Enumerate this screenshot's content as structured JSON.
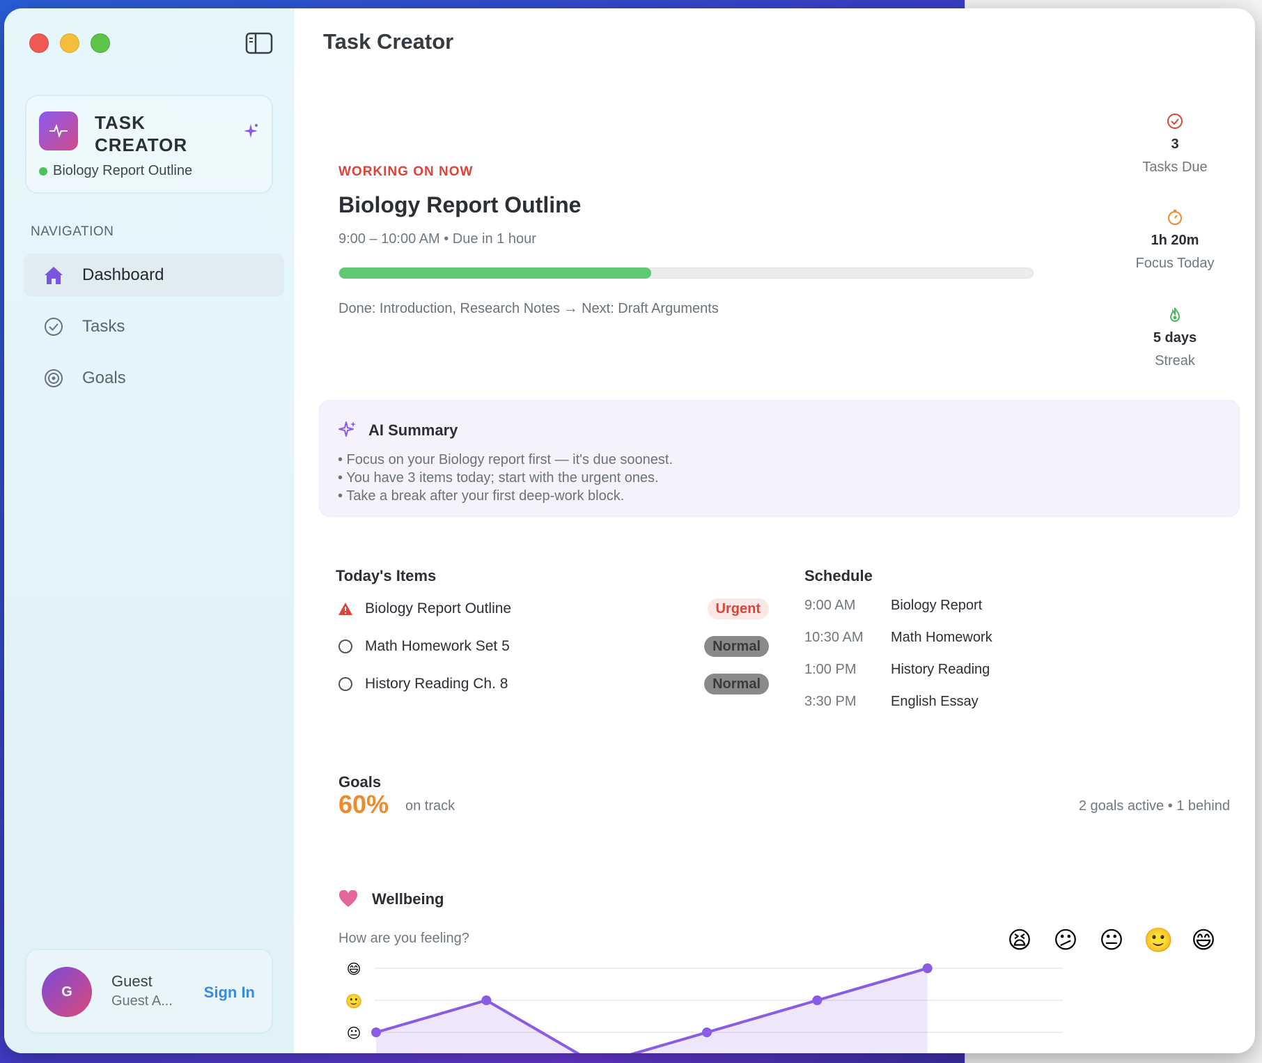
{
  "window": {
    "title": "Task Creator"
  },
  "sidebar": {
    "brand": {
      "title": "TASK CREATOR",
      "status": "Biology Report Outline"
    },
    "nav_label": "NAVIGATION",
    "items": [
      {
        "label": "Dashboard",
        "icon": "house-icon",
        "active": true
      },
      {
        "label": "Tasks",
        "icon": "check-circle-icon",
        "active": false
      },
      {
        "label": "Goals",
        "icon": "target-icon",
        "active": false
      }
    ],
    "user": {
      "initial": "G",
      "name": "Guest",
      "subtitle": "Guest A...",
      "sign_in": "Sign In"
    }
  },
  "current": {
    "label": "WORKING ON NOW",
    "title": "Biology Report Outline",
    "time": "9:00 – 10:00 AM • Due in 1 hour",
    "progress": 0.45,
    "steps": "Done: Introduction, Research Notes → Next: Draft Arguments"
  },
  "stats": [
    {
      "value": "3",
      "label": "Tasks Due",
      "icon": "check-circle-icon",
      "color": "#dd4437"
    },
    {
      "value": "1h 20m",
      "label": "Focus Today",
      "icon": "timer-icon",
      "color": "#ef8a2b"
    },
    {
      "value": "5 days",
      "label": "Streak",
      "icon": "flame-icon",
      "color": "#4bb85c"
    }
  ],
  "ai": {
    "title": "AI Summary",
    "lines": [
      "• Focus on your Biology report first — it's due soonest.",
      "• You have 3 items today; start with the urgent ones.",
      "• Take a break after your first deep-work block."
    ]
  },
  "today": {
    "title": "Today's Items",
    "items": [
      {
        "label": "Biology Report Outline",
        "badge": "Urgent",
        "icon": "warning-icon"
      },
      {
        "label": "Math Homework Set 5",
        "badge": "Normal",
        "icon": "circle-icon"
      },
      {
        "label": "History Reading Ch. 8",
        "badge": "Normal",
        "icon": "circle-icon"
      }
    ]
  },
  "schedule": {
    "title": "Schedule",
    "rows": [
      {
        "time": "9:00 AM",
        "title": "Biology Report"
      },
      {
        "time": "10:30 AM",
        "title": "Math Homework"
      },
      {
        "time": "1:00 PM",
        "title": "History Reading"
      },
      {
        "time": "3:30 PM",
        "title": "English Essay"
      }
    ]
  },
  "goals": {
    "title": "Goals",
    "percent": "60%",
    "status": "on track",
    "meta": "2 goals active • 1 behind"
  },
  "wellbeing": {
    "title": "Wellbeing",
    "question": "How are you feeling?",
    "moods": [
      "😫",
      "😕",
      "😐",
      "🙂",
      "😄"
    ],
    "y_emojis": [
      "😄",
      "🙂",
      "😐",
      "😕"
    ]
  },
  "chart_data": {
    "type": "area",
    "x": [
      1,
      2,
      3,
      4,
      5,
      6
    ],
    "values": [
      3,
      4,
      2,
      3,
      4,
      5
    ],
    "ylim": [
      2,
      5
    ],
    "y_tick_labels": [
      "😕",
      "😐",
      "🙂",
      "😄"
    ],
    "color": "#8a5ce6"
  },
  "colors": {
    "accent": "#8a5ce6",
    "urgent": "#dd4437",
    "progress": "#5fc870",
    "goals": "#ef8a2b",
    "link": "#3a8ae0"
  }
}
